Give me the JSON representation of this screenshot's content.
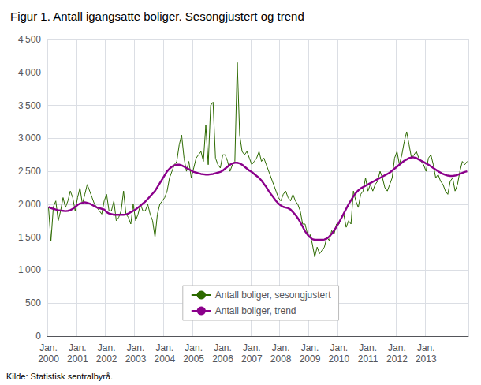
{
  "chart_data": {
    "type": "line",
    "title": "Figur 1. Antall igangsatte boliger. Sesongjustert og trend",
    "annotations": [
      "Kilde: Statistisk sentralbyrå."
    ],
    "categories": [
      "Jan.\n2000",
      null,
      null,
      null,
      null,
      null,
      null,
      null,
      null,
      null,
      null,
      null,
      "Jan.\n2001",
      null,
      null,
      null,
      null,
      null,
      null,
      null,
      null,
      null,
      null,
      null,
      "Jan.\n2002",
      null,
      null,
      null,
      null,
      null,
      null,
      null,
      null,
      null,
      null,
      null,
      "Jan.\n2003",
      null,
      null,
      null,
      null,
      null,
      null,
      null,
      null,
      null,
      null,
      null,
      "Jan.\n2004",
      null,
      null,
      null,
      null,
      null,
      null,
      null,
      null,
      null,
      null,
      null,
      "Jan.\n2005",
      null,
      null,
      null,
      null,
      null,
      null,
      null,
      null,
      null,
      null,
      null,
      "Jan.\n2006",
      null,
      null,
      null,
      null,
      null,
      null,
      null,
      null,
      null,
      null,
      null,
      "Jan.\n2007",
      null,
      null,
      null,
      null,
      null,
      null,
      null,
      null,
      null,
      null,
      null,
      "Jan.\n2008",
      null,
      null,
      null,
      null,
      null,
      null,
      null,
      null,
      null,
      null,
      null,
      "Jan.\n2009",
      null,
      null,
      null,
      null,
      null,
      null,
      null,
      null,
      null,
      null,
      null,
      "Jan.\n2010",
      null,
      null,
      null,
      null,
      null,
      null,
      null,
      null,
      null,
      null,
      null,
      "Jan.\n2011",
      null,
      null,
      null,
      null,
      null,
      null,
      null,
      null,
      null,
      null,
      null,
      "Jan.\n2012",
      null,
      null,
      null,
      null,
      null,
      null,
      null,
      null,
      null,
      null,
      null,
      "Jan.\n2013",
      null,
      null,
      null,
      null,
      null,
      null,
      null,
      null,
      null,
      null,
      null,
      null,
      null,
      null,
      null,
      null,
      null
    ],
    "series": [
      {
        "name": "Antall boliger, sesongjustert",
        "color": "#2d6a00",
        "values": [
          1950,
          1440,
          1960,
          2050,
          1750,
          1900,
          2100,
          1950,
          2050,
          2200,
          2100,
          1900,
          2100,
          2250,
          2000,
          2150,
          2300,
          2200,
          2100,
          2000,
          1950,
          1900,
          1850,
          2050,
          2150,
          1900,
          1900,
          2050,
          1750,
          1800,
          1900,
          2200,
          1850,
          1800,
          1700,
          2000,
          1750,
          1850,
          2000,
          1900,
          1900,
          2000,
          1850,
          1750,
          1500,
          1850,
          2000,
          2050,
          2100,
          2200,
          2400,
          2500,
          2600,
          2650,
          2900,
          3050,
          2700,
          2500,
          2650,
          2400,
          2550,
          2700,
          2750,
          2800,
          2650,
          3200,
          2600,
          3500,
          3550,
          2700,
          2600,
          2550,
          2750,
          2750,
          2650,
          2500,
          2600,
          2650,
          4150,
          3050,
          2800,
          2750,
          2800,
          2700,
          2600,
          2650,
          2700,
          2800,
          2650,
          2700,
          2600,
          2500,
          2400,
          2300,
          2200,
          2100,
          2050,
          2150,
          2200,
          2100,
          2050,
          2150,
          2050,
          2000,
          1900,
          1700,
          1700,
          1550,
          1550,
          1400,
          1200,
          1350,
          1250,
          1300,
          1350,
          1500,
          1450,
          1600,
          1550,
          1700,
          1700,
          1800,
          1850,
          1650,
          1750,
          1700,
          2200,
          2050,
          1950,
          2150,
          2200,
          2400,
          2200,
          2300,
          2200,
          2300,
          2350,
          2500,
          2400,
          2250,
          2200,
          2300,
          2400,
          2700,
          2800,
          2600,
          2750,
          2950,
          3100,
          2900,
          2700,
          2750,
          2800,
          2700,
          2650,
          2600,
          2500,
          2700,
          2750,
          2600,
          2400,
          2450,
          2350,
          2300,
          2200,
          2150,
          2350,
          2400,
          2200,
          2300,
          2500,
          2650,
          2600,
          2650
        ]
      },
      {
        "name": "Antall boliger, trend",
        "color": "#8b008b",
        "values": [
          1960,
          1940,
          1930,
          1920,
          1910,
          1905,
          1900,
          1895,
          1900,
          1910,
          1930,
          1960,
          1990,
          2010,
          2020,
          2030,
          2020,
          2010,
          1990,
          1970,
          1950,
          1940,
          1930,
          1920,
          1880,
          1860,
          1850,
          1840,
          1840,
          1840,
          1840,
          1840,
          1845,
          1860,
          1880,
          1900,
          1920,
          1950,
          1980,
          2010,
          2040,
          2080,
          2120,
          2160,
          2200,
          2260,
          2320,
          2380,
          2440,
          2500,
          2540,
          2570,
          2590,
          2600,
          2600,
          2590,
          2570,
          2550,
          2530,
          2510,
          2490,
          2480,
          2470,
          2460,
          2455,
          2450,
          2450,
          2455,
          2460,
          2470,
          2480,
          2490,
          2510,
          2540,
          2570,
          2600,
          2620,
          2630,
          2630,
          2620,
          2600,
          2570,
          2540,
          2510,
          2490,
          2460,
          2430,
          2400,
          2360,
          2310,
          2260,
          2200,
          2150,
          2100,
          2050,
          2010,
          1980,
          1960,
          1950,
          1940,
          1920,
          1880,
          1840,
          1790,
          1730,
          1660,
          1590,
          1540,
          1500,
          1470,
          1460,
          1460,
          1460,
          1460,
          1465,
          1480,
          1510,
          1550,
          1600,
          1660,
          1720,
          1790,
          1860,
          1930,
          2000,
          2060,
          2120,
          2170,
          2210,
          2240,
          2260,
          2280,
          2300,
          2320,
          2340,
          2360,
          2380,
          2400,
          2420,
          2440,
          2460,
          2480,
          2510,
          2540,
          2570,
          2600,
          2630,
          2660,
          2680,
          2700,
          2710,
          2710,
          2700,
          2680,
          2660,
          2640,
          2620,
          2600,
          2575,
          2550,
          2525,
          2500,
          2480,
          2460,
          2445,
          2435,
          2430,
          2430,
          2435,
          2445,
          2460,
          2475,
          2490,
          2500
        ]
      }
    ],
    "ylim": [
      0,
      4500
    ],
    "yticks": [
      0,
      500,
      {
        "value": 1000,
        "label": "1 000"
      },
      {
        "value": 1500,
        "label": "1 500"
      },
      {
        "value": 2000,
        "label": "2 000"
      },
      {
        "value": 2500,
        "label": "2 500"
      },
      {
        "value": 3000,
        "label": "3 000"
      },
      {
        "value": 3500,
        "label": "3 500"
      },
      {
        "value": 4000,
        "label": "4 000"
      },
      {
        "value": 4500,
        "label": "4 500"
      }
    ],
    "grid": true,
    "legend": "bottom"
  }
}
